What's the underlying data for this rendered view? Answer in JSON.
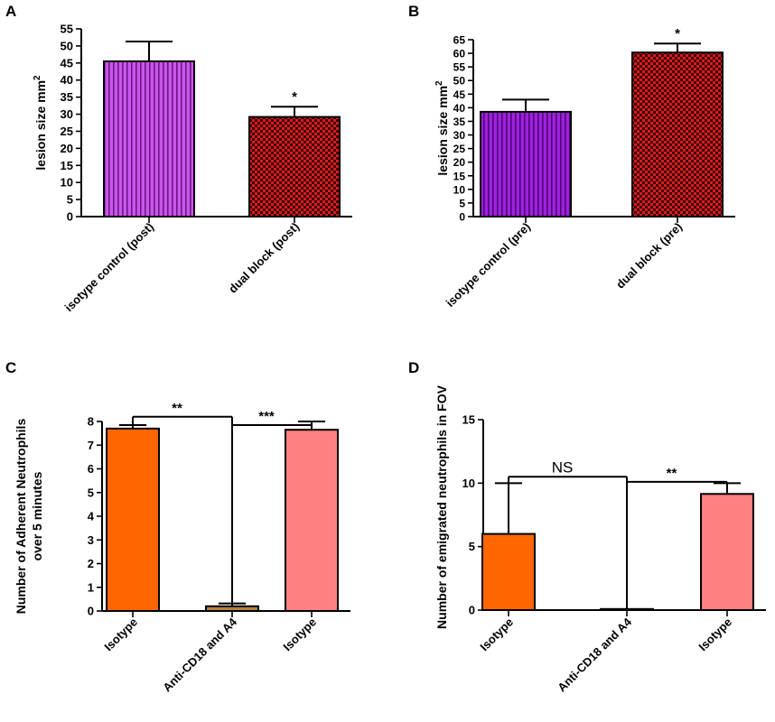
{
  "chart_data": [
    {
      "panel": "A",
      "type": "bar",
      "categories": [
        "isotype control (post)",
        "dual block (post)"
      ],
      "values": [
        45.5,
        29.2
      ],
      "errors": [
        5.8,
        3.0
      ],
      "sig": [
        "",
        "*"
      ],
      "ylabel": "lesion size mm",
      "ylabel_sup": "2",
      "ylim": [
        0,
        55
      ],
      "yticks": [
        "0",
        "5",
        "10",
        "15",
        "20",
        "25",
        "30",
        "35",
        "40",
        "45",
        "50",
        "55"
      ],
      "fills": [
        "vertical-stripe-violet",
        "checker-red"
      ],
      "colors": [
        "#cc55ee",
        "#aa1111"
      ]
    },
    {
      "panel": "B",
      "type": "bar",
      "categories": [
        "isotype control (pre)",
        "dual block (pre)"
      ],
      "values": [
        38.5,
        60.3
      ],
      "errors": [
        4.5,
        3.3
      ],
      "sig": [
        "",
        "*"
      ],
      "ylabel": "lesion size mm",
      "ylabel_sup": "2",
      "ylim": [
        0,
        65
      ],
      "yticks": [
        "0",
        "5",
        "10",
        "15",
        "20",
        "25",
        "30",
        "35",
        "40",
        "45",
        "50",
        "55",
        "60",
        "65"
      ],
      "fills": [
        "vertical-stripe-purple",
        "checker-red"
      ],
      "colors": [
        "#a020e0",
        "#cc1111"
      ]
    },
    {
      "panel": "C",
      "type": "bar",
      "categories": [
        "Isotype",
        "Anti-CD18 and A4",
        "Isotype"
      ],
      "values": [
        7.7,
        0.2,
        7.65
      ],
      "errors": [
        0.15,
        0.12,
        0.35
      ],
      "ylabel_line1": "Number of Adherent Neutrophils",
      "ylabel_line2": "over 5 minutes",
      "ylim": [
        0,
        8
      ],
      "yticks": [
        "0",
        "1",
        "2",
        "3",
        "4",
        "5",
        "6",
        "7",
        "8"
      ],
      "colors": [
        "#ff6600",
        "#b5813a",
        "#ff8080"
      ],
      "brackets": [
        {
          "from": 0,
          "to": 1,
          "label": "**",
          "y": 8.2
        },
        {
          "from": 1,
          "to": 2,
          "label": "***",
          "y": 7.85
        }
      ]
    },
    {
      "panel": "D",
      "type": "bar",
      "categories": [
        "Isotype",
        "Anti-CD18 and A4",
        "Isotype"
      ],
      "values": [
        6.0,
        0.0,
        9.15
      ],
      "errors": [
        4.0,
        0.0,
        0.85
      ],
      "ylabel": "Number of emigrated neutrophils in FOV",
      "ylim": [
        0,
        15
      ],
      "yticks": [
        "0",
        "5",
        "10",
        "15"
      ],
      "colors": [
        "#ff6600",
        "#b5813a",
        "#ff8080"
      ],
      "brackets": [
        {
          "from": 0,
          "to": 1,
          "label": "NS",
          "y": 10.5
        },
        {
          "from": 1,
          "to": 2,
          "label": "**",
          "y": 10.1
        }
      ]
    }
  ]
}
